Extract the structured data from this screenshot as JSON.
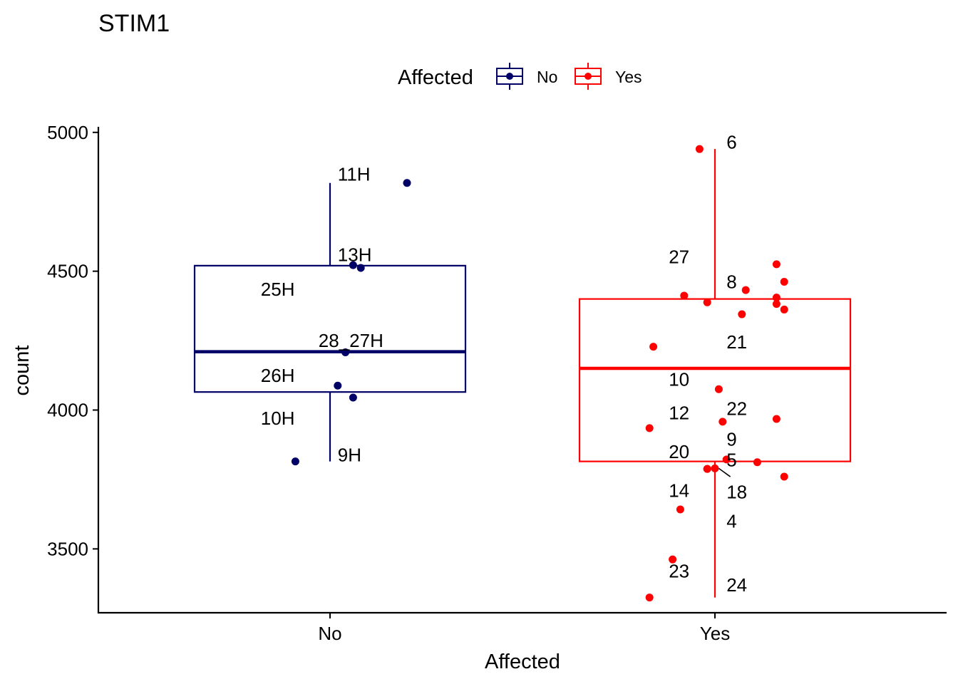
{
  "chart_data": {
    "type": "boxplot",
    "title": "STIM1",
    "xlabel": "Affected",
    "ylabel": "count",
    "ylim": [
      3270,
      5020
    ],
    "yticks": [
      3500,
      4000,
      4500,
      5000
    ],
    "grid": false,
    "legend": {
      "title": "Affected",
      "position": "top",
      "entries": [
        {
          "label": "No",
          "color": "#000066"
        },
        {
          "label": "Yes",
          "color": "#ff0000"
        }
      ]
    },
    "categories": [
      "No",
      "Yes"
    ],
    "boxes": [
      {
        "category": "No",
        "color": "#000066",
        "lower_whisker": 3815,
        "q1": 4065,
        "median": 4210,
        "q3": 4520,
        "upper_whisker": 4818
      },
      {
        "category": "Yes",
        "color": "#ff0000",
        "lower_whisker": 3325,
        "q1": 3815,
        "median": 4150,
        "q3": 4400,
        "upper_whisker": 4940
      }
    ],
    "points": [
      {
        "group": "No",
        "label": "11H",
        "x": 1.2,
        "y": 4818,
        "lx": 1.02,
        "ly": 4850
      },
      {
        "group": "No",
        "label": "13H",
        "x": 1.06,
        "y": 4522,
        "lx": 1.02,
        "ly": 4560
      },
      {
        "group": "No",
        "label": "25H",
        "x": 1.08,
        "y": 4512,
        "lx": 0.82,
        "ly": 4435
      },
      {
        "group": "No",
        "label": "28_27H",
        "x": 1.04,
        "y": 4208,
        "lx": 0.97,
        "ly": 4250
      },
      {
        "group": "No",
        "label": "26H",
        "x": 1.02,
        "y": 4088,
        "lx": 0.82,
        "ly": 4125
      },
      {
        "group": "No",
        "label": "10H",
        "x": 1.06,
        "y": 4045,
        "lx": 0.82,
        "ly": 3970
      },
      {
        "group": "No",
        "label": "9H",
        "x": 0.91,
        "y": 3815,
        "lx": 1.02,
        "ly": 3838
      },
      {
        "group": "Yes",
        "label": "6",
        "x": 1.96,
        "y": 4940,
        "lx": 2.03,
        "ly": 4965
      },
      {
        "group": "Yes",
        "label": "27",
        "x": 1.92,
        "y": 4412,
        "lx": 1.88,
        "ly": 4552
      },
      {
        "group": "Yes",
        "label": "8",
        "x": 2.08,
        "y": 4432,
        "lx": 2.03,
        "ly": 4462
      },
      {
        "group": "Yes",
        "label": "",
        "x": 1.98,
        "y": 4388
      },
      {
        "group": "Yes",
        "label": "",
        "x": 2.07,
        "y": 4345
      },
      {
        "group": "Yes",
        "label": "",
        "x": 2.16,
        "y": 4525
      },
      {
        "group": "Yes",
        "label": "",
        "x": 2.18,
        "y": 4462
      },
      {
        "group": "Yes",
        "label": "",
        "x": 2.16,
        "y": 4405
      },
      {
        "group": "Yes",
        "label": "",
        "x": 2.16,
        "y": 4382
      },
      {
        "group": "Yes",
        "label": "",
        "x": 2.18,
        "y": 4362
      },
      {
        "group": "Yes",
        "label": "21",
        "x": 1.84,
        "y": 4228,
        "lx": 2.03,
        "ly": 4245
      },
      {
        "group": "Yes",
        "label": "10",
        "x": 2.01,
        "y": 4075,
        "lx": 1.88,
        "ly": 4110
      },
      {
        "group": "Yes",
        "label": "22",
        "x": 2.02,
        "y": 3958,
        "lx": 2.03,
        "ly": 4005
      },
      {
        "group": "Yes",
        "label": "12",
        "x": 1.83,
        "y": 3935,
        "lx": 1.88,
        "ly": 3990
      },
      {
        "group": "Yes",
        "label": "",
        "x": 2.16,
        "y": 3968
      },
      {
        "group": "Yes",
        "label": "9",
        "x": 2.03,
        "y": 3822,
        "lx": 2.03,
        "ly": 3895
      },
      {
        "group": "Yes",
        "label": "20",
        "x": 1.98,
        "y": 3788,
        "lx": 1.88,
        "ly": 3850
      },
      {
        "group": "Yes",
        "label": "5",
        "x": 2.11,
        "y": 3812,
        "lx": 2.03,
        "ly": 3820
      },
      {
        "group": "Yes",
        "label": "",
        "x": 2.18,
        "y": 3760
      },
      {
        "group": "Yes",
        "label": "14",
        "x": 1.91,
        "y": 3642,
        "lx": 1.88,
        "ly": 3710
      },
      {
        "group": "Yes",
        "label": "18",
        "x": 1.98,
        "y": 3788,
        "lx": 2.03,
        "ly": 3705
      },
      {
        "group": "Yes",
        "label": "4",
        "x": 2.0,
        "y": 3790,
        "lx": 2.03,
        "ly": 3600
      },
      {
        "group": "Yes",
        "label": "23",
        "x": 1.89,
        "y": 3462,
        "lx": 1.88,
        "ly": 3420
      },
      {
        "group": "Yes",
        "label": "24",
        "x": 1.83,
        "y": 3325,
        "lx": 2.03,
        "ly": 3370
      }
    ]
  }
}
